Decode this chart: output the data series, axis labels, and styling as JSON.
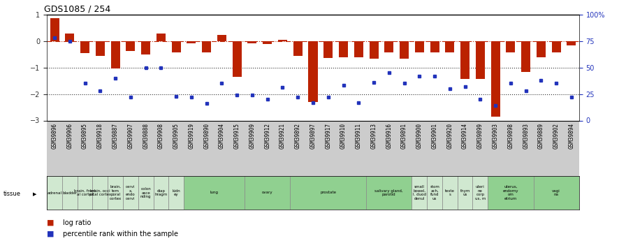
{
  "title": "GDS1085 / 254",
  "samples": [
    "GSM39896",
    "GSM39906",
    "GSM39895",
    "GSM39918",
    "GSM39887",
    "GSM39907",
    "GSM39888",
    "GSM39908",
    "GSM39905",
    "GSM39919",
    "GSM39890",
    "GSM39904",
    "GSM39915",
    "GSM39909",
    "GSM39912",
    "GSM39921",
    "GSM39892",
    "GSM39897",
    "GSM39917",
    "GSM39910",
    "GSM39911",
    "GSM39913",
    "GSM39916",
    "GSM39891",
    "GSM39900",
    "GSM39901",
    "GSM39920",
    "GSM39914",
    "GSM39899",
    "GSM39903",
    "GSM39898",
    "GSM39893",
    "GSM39889",
    "GSM39902",
    "GSM39894"
  ],
  "log_ratio": [
    0.85,
    0.28,
    -0.45,
    -0.55,
    -1.05,
    -0.38,
    -0.52,
    0.28,
    -0.42,
    -0.08,
    -0.42,
    0.22,
    -1.35,
    -0.08,
    -0.12,
    0.05,
    -0.55,
    -2.3,
    -0.65,
    -0.62,
    -0.62,
    -0.68,
    -0.42,
    -0.68,
    -0.42,
    -0.42,
    -0.42,
    -1.42,
    -1.42,
    -2.85,
    -0.42,
    -1.18,
    -0.62,
    -0.42,
    -0.18
  ],
  "pct_rank": [
    78,
    75,
    35,
    28,
    40,
    22,
    50,
    50,
    23,
    22,
    16,
    35,
    24,
    24,
    20,
    31,
    22,
    17,
    22,
    33,
    17,
    36,
    45,
    35,
    42,
    42,
    30,
    32,
    20,
    14,
    35,
    28,
    38,
    35,
    22
  ],
  "tissues": [
    {
      "label": "adrenal",
      "start": 0,
      "end": 1,
      "color": "#d0e8d0"
    },
    {
      "label": "bladder",
      "start": 1,
      "end": 2,
      "color": "#d0e8d0"
    },
    {
      "label": "brain, front\nal cortex",
      "start": 2,
      "end": 3,
      "color": "#d0e8d0"
    },
    {
      "label": "brain, occi\npital cortex",
      "start": 3,
      "end": 4,
      "color": "#d0e8d0"
    },
    {
      "label": "brain,\ntem\nporal\ncortex",
      "start": 4,
      "end": 5,
      "color": "#d0e8d0"
    },
    {
      "label": "cervi\nx,\nendo\ncervi",
      "start": 5,
      "end": 6,
      "color": "#d0e8d0"
    },
    {
      "label": "colon\nasce\nnding",
      "start": 6,
      "end": 7,
      "color": "#d0e8d0"
    },
    {
      "label": "diap\nhragm",
      "start": 7,
      "end": 8,
      "color": "#d0e8d0"
    },
    {
      "label": "kidn\ney",
      "start": 8,
      "end": 9,
      "color": "#d0e8d0"
    },
    {
      "label": "lung",
      "start": 9,
      "end": 13,
      "color": "#90d090"
    },
    {
      "label": "ovary",
      "start": 13,
      "end": 16,
      "color": "#90d090"
    },
    {
      "label": "prostate",
      "start": 16,
      "end": 21,
      "color": "#90d090"
    },
    {
      "label": "salivary gland,\nparotid",
      "start": 21,
      "end": 24,
      "color": "#90d090"
    },
    {
      "label": "small\nbowel,\nI. duod\ndenuI",
      "start": 24,
      "end": 25,
      "color": "#d0e8d0"
    },
    {
      "label": "stom\nach,\nfund\nus",
      "start": 25,
      "end": 26,
      "color": "#d0e8d0"
    },
    {
      "label": "teste\ns",
      "start": 26,
      "end": 27,
      "color": "#d0e8d0"
    },
    {
      "label": "thym\nus",
      "start": 27,
      "end": 28,
      "color": "#d0e8d0"
    },
    {
      "label": "uteri\nne\ncorp\nus, m",
      "start": 28,
      "end": 29,
      "color": "#d0e8d0"
    },
    {
      "label": "uterus,\nendomy\nom\netrium",
      "start": 29,
      "end": 32,
      "color": "#90d090"
    },
    {
      "label": "vagi\nna",
      "start": 32,
      "end": 35,
      "color": "#90d090"
    }
  ],
  "ylim_left": [
    -3.0,
    1.0
  ],
  "yticks_left": [
    -3,
    -2,
    -1,
    0,
    1
  ],
  "yticks_right_pct": [
    0,
    25,
    50,
    75,
    100
  ],
  "bar_color": "#bb2200",
  "dot_color": "#2233bb",
  "hline_color": "#bb2200",
  "dotted_line_color": "#333333",
  "bg_color": "#ffffff",
  "gsm_strip_color": "#cccccc"
}
